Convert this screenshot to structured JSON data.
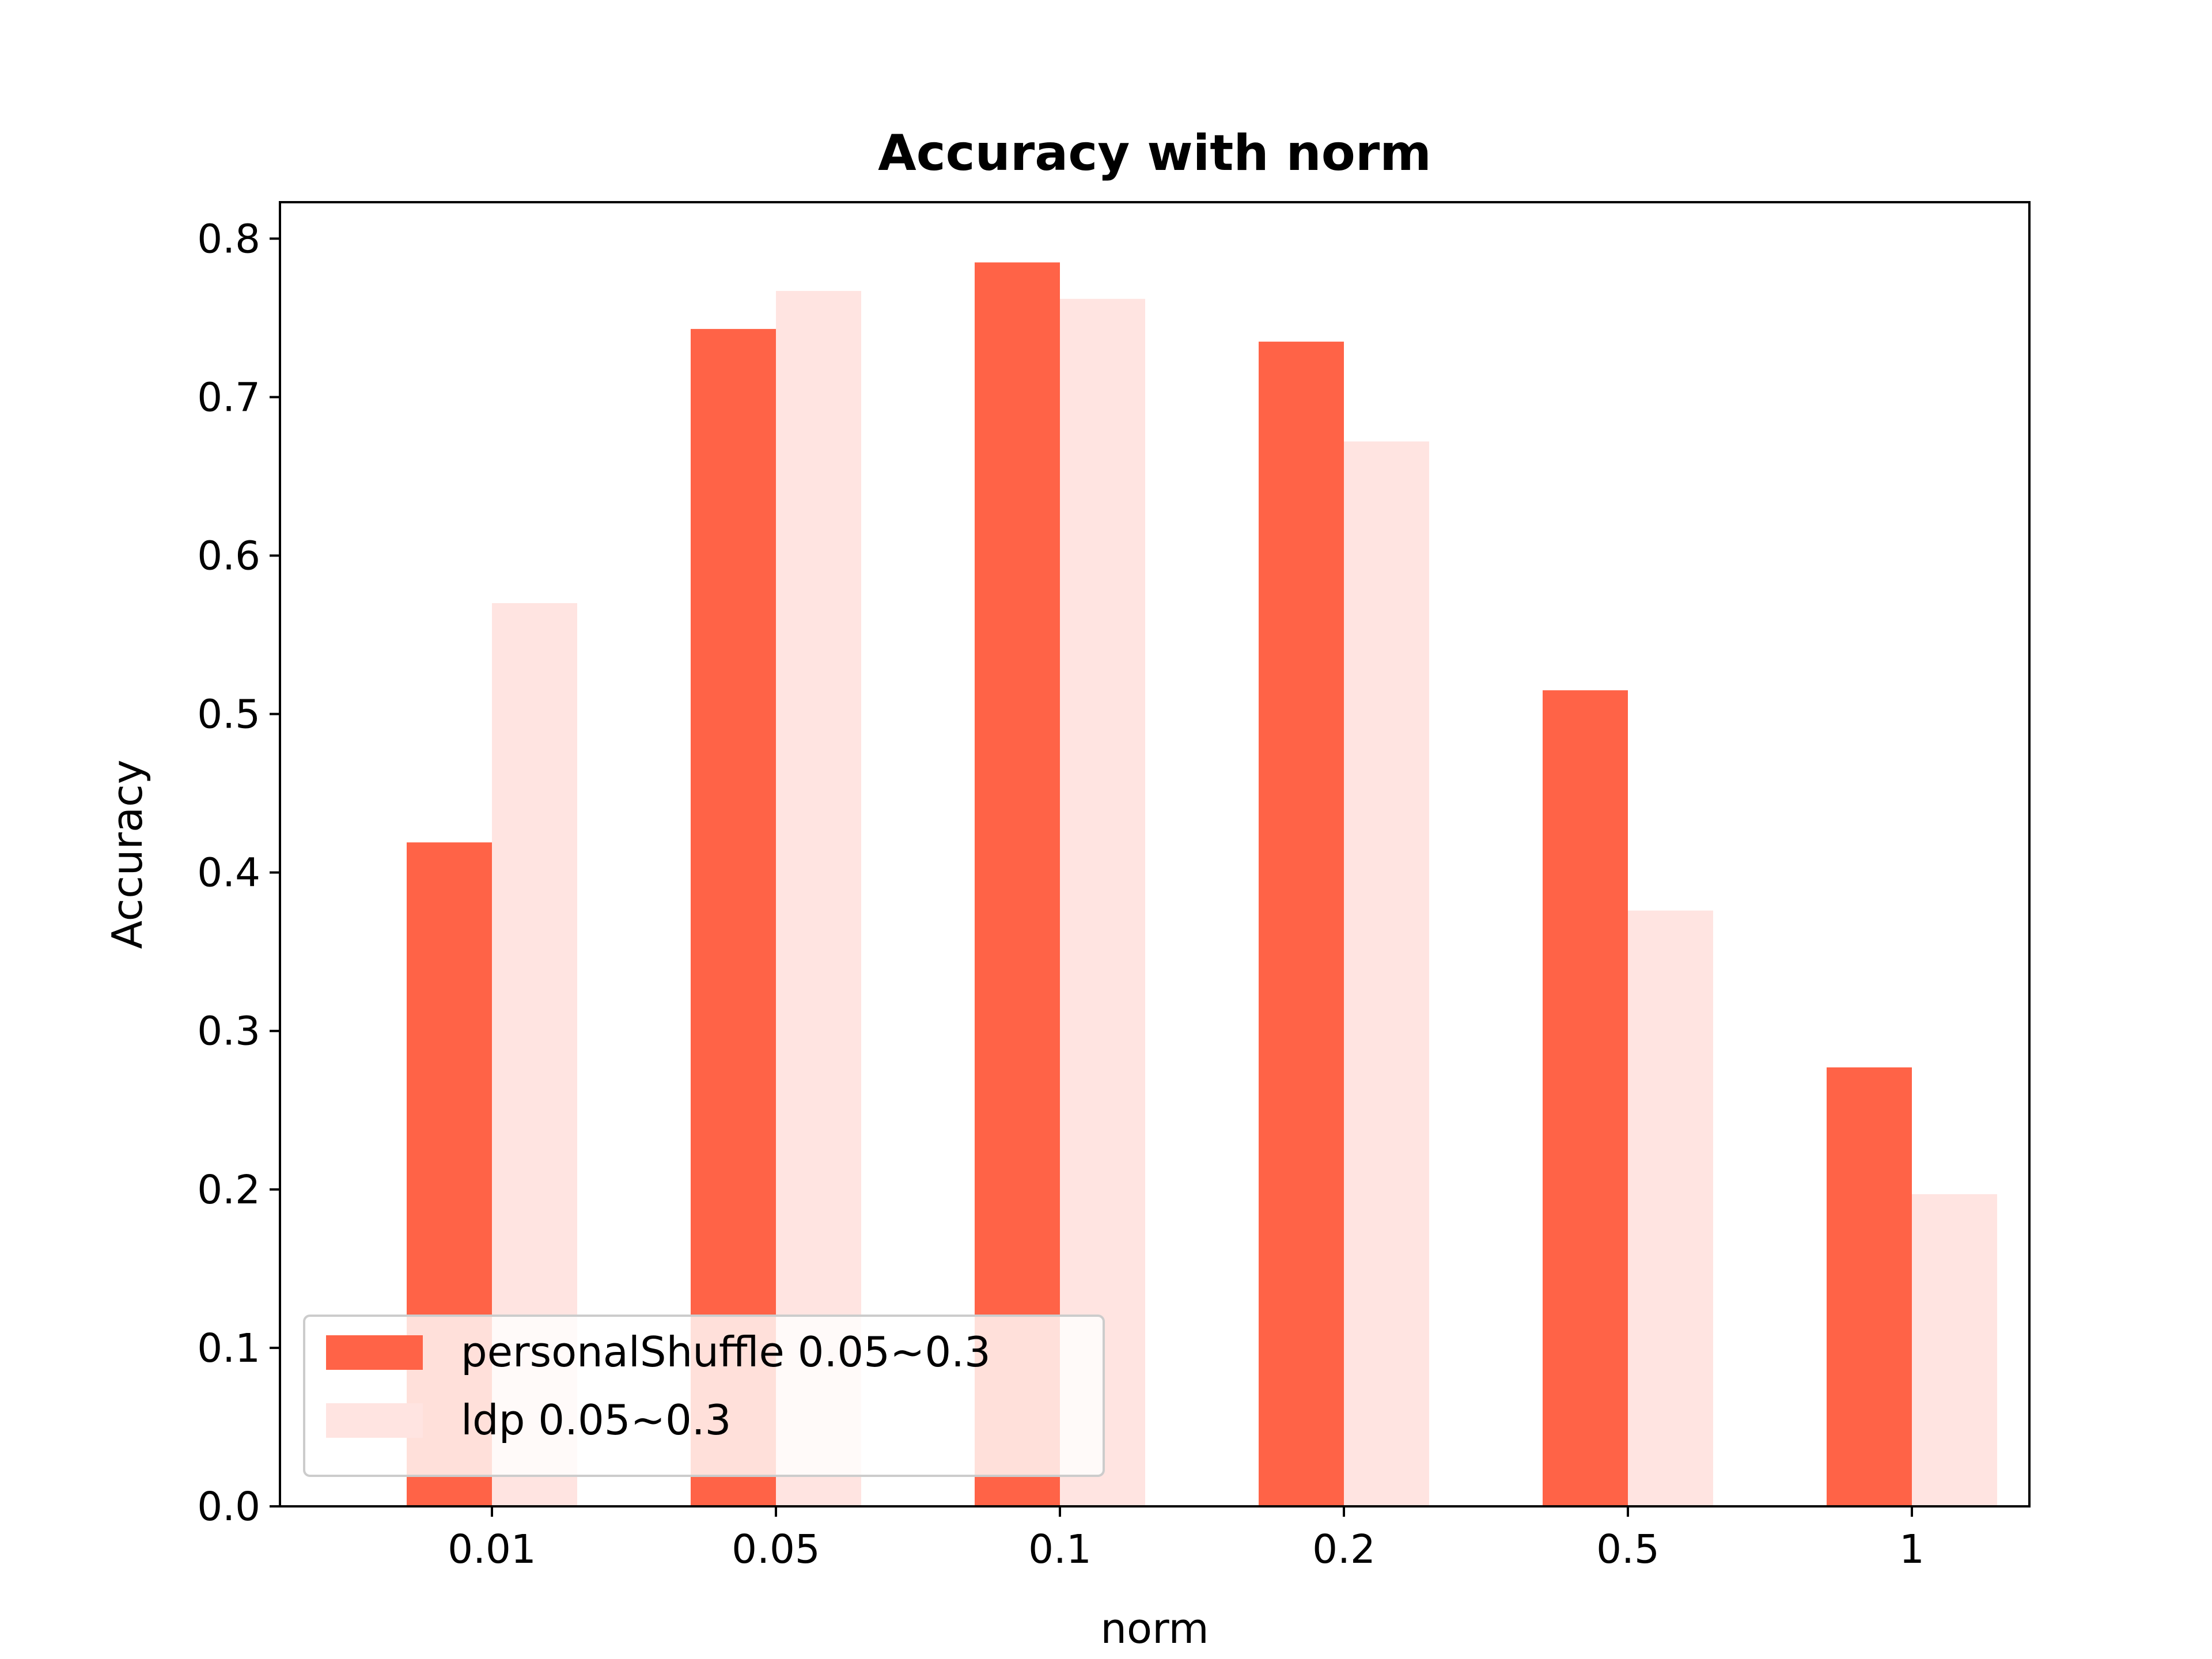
{
  "chart_data": {
    "type": "bar",
    "title": "Accuracy with norm",
    "xlabel": "norm",
    "ylabel": "Accuracy",
    "categories": [
      "0.01",
      "0.05",
      "0.1",
      "0.2",
      "0.5",
      "1"
    ],
    "series": [
      {
        "name": "personalShuffle 0.05~0.3",
        "color": "#ff6347",
        "values": [
          0.419,
          0.743,
          0.785,
          0.735,
          0.515,
          0.277
        ]
      },
      {
        "name": "ldp 0.05~0.3",
        "color": "#ffe4e1",
        "values": [
          0.57,
          0.767,
          0.762,
          0.672,
          0.376,
          0.197
        ]
      }
    ],
    "ylim": [
      0,
      0.823
    ],
    "yticks": [
      0.0,
      0.1,
      0.2,
      0.3,
      0.4,
      0.5,
      0.6,
      0.7,
      0.8
    ],
    "ytick_labels": [
      "0.0",
      "0.1",
      "0.2",
      "0.3",
      "0.4",
      "0.5",
      "0.6",
      "0.7",
      "0.8"
    ],
    "grid": false,
    "legend_position": "lower-left"
  }
}
